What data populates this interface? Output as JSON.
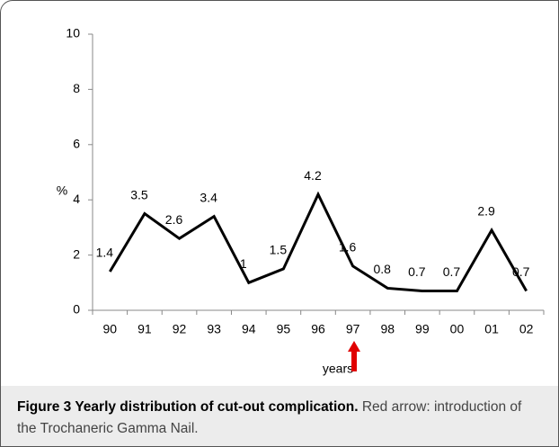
{
  "chart_data": {
    "type": "line",
    "categories": [
      "90",
      "91",
      "92",
      "93",
      "94",
      "95",
      "96",
      "97",
      "98",
      "99",
      "00",
      "01",
      "02"
    ],
    "values": [
      1.4,
      3.5,
      2.6,
      3.4,
      1,
      1.5,
      4.2,
      1.6,
      0.8,
      0.7,
      0.7,
      2.9,
      0.7
    ],
    "color": "#000000",
    "ylim": [
      0,
      10
    ],
    "yticks": [
      0,
      2,
      4,
      6,
      8,
      10
    ],
    "y_label": "%",
    "x_label": "years",
    "grid": false
  },
  "caption": {
    "title": "Figure 3 Yearly distribution of cut-out complication.",
    "text": "Red arrow: introduction of the Trochaneric Gamma Nail."
  }
}
